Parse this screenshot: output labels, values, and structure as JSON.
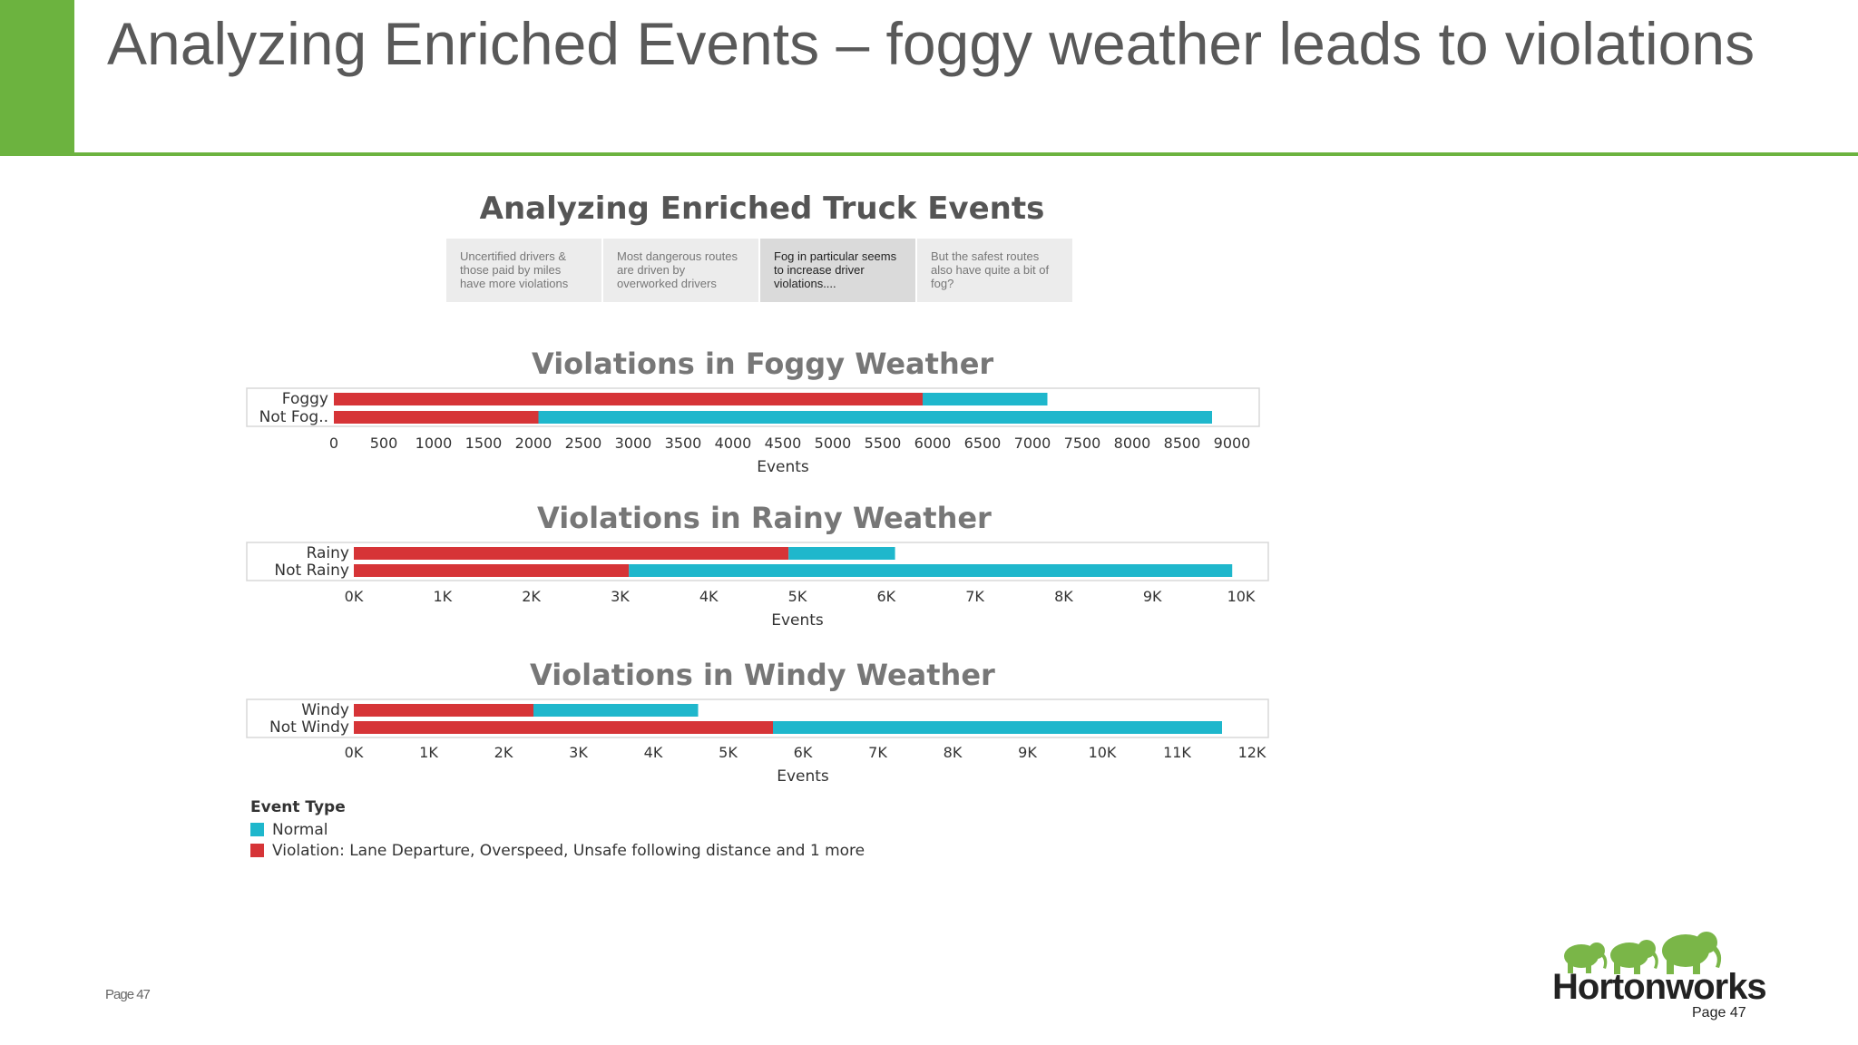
{
  "slide": {
    "title": "Analyzing Enriched Events – foggy weather leads to violations",
    "page_left": "Page 47",
    "page_right": "Page 47",
    "logo_text": "Hortonworks"
  },
  "dashboard": {
    "title": "Analyzing Enriched Truck Events",
    "tabs": [
      {
        "label": "Uncertified drivers & those paid by miles have more violations",
        "active": false
      },
      {
        "label": "Most dangerous routes are driven by overworked drivers",
        "active": false
      },
      {
        "label": "Fog in particular seems to increase driver violations....",
        "active": true
      },
      {
        "label": "But the safest routes also have quite a bit of fog?",
        "active": false
      }
    ]
  },
  "colors": {
    "violation": "#d63437",
    "normal": "#1fb7cc",
    "accent": "#6cb33f"
  },
  "legend": {
    "title": "Event Type",
    "items": [
      {
        "label": "Normal",
        "color": "#1fb7cc"
      },
      {
        "label": "Violation: Lane Departure, Overspeed, Unsafe following distance and 1 more",
        "color": "#d63437"
      }
    ]
  },
  "chart_data": [
    {
      "type": "bar",
      "orientation": "horizontal",
      "stacked": true,
      "title": "Violations in Foggy Weather",
      "xlabel": "Events",
      "categories": [
        "Foggy",
        "Not Fog.."
      ],
      "series": [
        {
          "name": "Violation: Lane Departure, Overspeed, Unsafe following distance and 1 more",
          "values": [
            5900,
            2050
          ]
        },
        {
          "name": "Normal",
          "values": [
            1250,
            6750
          ]
        }
      ],
      "xlim": [
        0,
        9000
      ],
      "ticks": [
        0,
        500,
        1000,
        1500,
        2000,
        2500,
        3000,
        3500,
        4000,
        4500,
        5000,
        5500,
        6000,
        6500,
        7000,
        7500,
        8000,
        8500,
        9000
      ],
      "tick_labels": [
        "0",
        "500",
        "1000",
        "1500",
        "2000",
        "2500",
        "3000",
        "3500",
        "4000",
        "4500",
        "5000",
        "5500",
        "6000",
        "6500",
        "7000",
        "7500",
        "8000",
        "8500",
        "9000"
      ]
    },
    {
      "type": "bar",
      "orientation": "horizontal",
      "stacked": true,
      "title": "Violations in Rainy Weather",
      "xlabel": "Events",
      "categories": [
        "Rainy",
        "Not Rainy"
      ],
      "series": [
        {
          "name": "Violation: Lane Departure, Overspeed, Unsafe following distance and 1 more",
          "values": [
            4900,
            3100
          ]
        },
        {
          "name": "Normal",
          "values": [
            1200,
            6800
          ]
        }
      ],
      "xlim": [
        0,
        10000
      ],
      "ticks": [
        0,
        1000,
        2000,
        3000,
        4000,
        5000,
        6000,
        7000,
        8000,
        9000,
        10000
      ],
      "tick_labels": [
        "0K",
        "1K",
        "2K",
        "3K",
        "4K",
        "5K",
        "6K",
        "7K",
        "8K",
        "9K",
        "10K"
      ]
    },
    {
      "type": "bar",
      "orientation": "horizontal",
      "stacked": true,
      "title": "Violations in Windy Weather",
      "xlabel": "Events",
      "categories": [
        "Windy",
        "Not Windy"
      ],
      "series": [
        {
          "name": "Violation: Lane Departure, Overspeed, Unsafe following distance and 1 more",
          "values": [
            2400,
            5600
          ]
        },
        {
          "name": "Normal",
          "values": [
            2200,
            6000
          ]
        }
      ],
      "xlim": [
        0,
        12000
      ],
      "ticks": [
        0,
        1000,
        2000,
        3000,
        4000,
        5000,
        6000,
        7000,
        8000,
        9000,
        10000,
        11000,
        12000
      ],
      "tick_labels": [
        "0K",
        "1K",
        "2K",
        "3K",
        "4K",
        "5K",
        "6K",
        "7K",
        "8K",
        "9K",
        "10K",
        "11K",
        "12K"
      ]
    }
  ]
}
